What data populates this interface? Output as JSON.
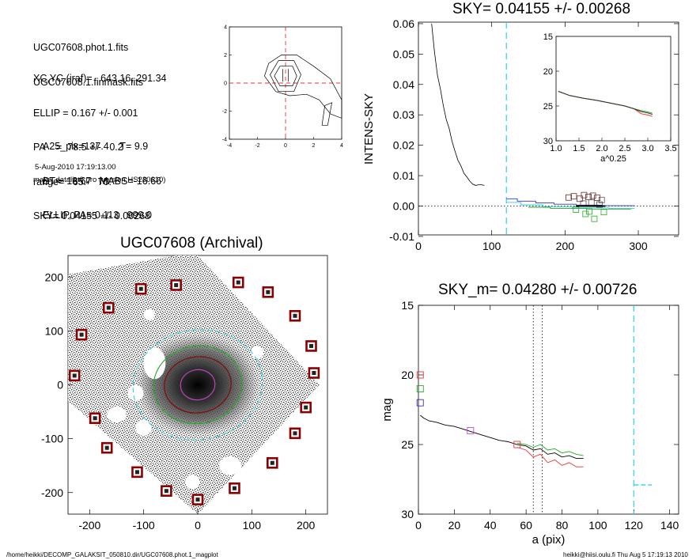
{
  "info": {
    "lines1": [
      "UGC07608.phot.1.fits",
      "UGC07608.1.finmask.fits"
    ],
    "lines2": [
      "XC,YC (iraf)=   643.16, 291.34",
      "ELLIP = 0.167 +/- 0.001",
      "PA    =  78.5 +/-   0.2",
      "range=   65.-   70.",
      "SKY= 0.04155 +/- 0.00268"
    ],
    "lines3": [
      "A25_pix=137.4    T= 9.9",
      "BT=  13.67   MABS=-16.66",
      "ELLIP, PA= 0.113   999.0"
    ],
    "date": "5-Aug-2010 17:19:13.00",
    "program": "make_datalist0.pro (version HS230610)"
  },
  "footer": {
    "left": "/home/heikki/DECOMP_GALAKSIT_050810.dir/UGC07608.phot.1_magplot",
    "right": "heikki@hiisi.oulu.fi  Thu Aug  5 17:19:13 2010"
  },
  "colors": {
    "cyan": "#2fd2e6",
    "red": "#e33",
    "green": "#2a2",
    "blue": "#33c",
    "magenta": "#c4c",
    "darkred": "#8b0000"
  },
  "chart_data": [
    {
      "type": "contour",
      "xlim": [
        -4,
        4
      ],
      "ylim": [
        -4,
        4
      ],
      "xticks": [
        -4,
        -2,
        0,
        2,
        4
      ],
      "yticks": [
        -4,
        -2,
        0,
        2,
        4
      ],
      "center": [
        0,
        0
      ]
    },
    {
      "type": "line",
      "title": "SKY= 0.04155 +/- 0.00268",
      "ylabel": "INTENS-SKY",
      "xlabel": "",
      "xlim": [
        0,
        355
      ],
      "ylim": [
        -0.0095,
        0.0605
      ],
      "xticks": [
        0,
        100,
        200,
        300
      ],
      "yticks": [
        -0.01,
        0.0,
        0.01,
        0.02,
        0.03,
        0.04,
        0.05,
        0.06
      ],
      "ytick_labels": [
        "-0.01",
        "0.00",
        "0.01",
        "0.02",
        "0.03",
        "0.04",
        "0.05",
        "0.06"
      ],
      "sky_line_x": 120,
      "profile": {
        "x": [
          18,
          22,
          26,
          30,
          34,
          38,
          42,
          46,
          50,
          54,
          58,
          62,
          66,
          70,
          74,
          78,
          82,
          86,
          90
        ],
        "y": [
          0.06,
          0.0505,
          0.043,
          0.0385,
          0.033,
          0.0285,
          0.0255,
          0.0212,
          0.018,
          0.015,
          0.0132,
          0.0108,
          0.0096,
          0.0082,
          0.0072,
          0.0068,
          0.007,
          0.007,
          0.0068
        ]
      },
      "outer_blue": {
        "x": [
          120,
          135,
          135,
          160,
          160,
          185,
          185,
          215,
          215,
          250,
          250,
          295
        ],
        "y": [
          0.0024,
          0.0024,
          0.0016,
          0.0016,
          0.001,
          0.001,
          0.0006,
          0.0006,
          0.0003,
          0.0003,
          0.0001,
          0.0001
        ]
      },
      "outer_cyan": {
        "x": [
          120,
          140,
          140,
          170,
          170,
          210,
          210,
          260,
          260,
          295
        ],
        "y": [
          0.0012,
          0.0012,
          0.0004,
          0.0004,
          -0.0002,
          -0.0002,
          -0.0006,
          -0.0006,
          -0.0008,
          -0.0008
        ]
      },
      "outer_green": {
        "x": [
          150,
          180,
          180,
          230,
          230,
          290
        ],
        "y": [
          -0.0004,
          -0.0004,
          -0.0008,
          -0.0008,
          -0.001,
          -0.001
        ]
      },
      "sky_boxes": [
        [
          205,
          0.0028
        ],
        [
          212,
          0.0032
        ],
        [
          220,
          0.0024
        ],
        [
          226,
          0.0036
        ],
        [
          232,
          0.003
        ],
        [
          238,
          0.0034
        ],
        [
          244,
          0.0027
        ],
        [
          250,
          0.002
        ],
        [
          215,
          -0.0012
        ],
        [
          225,
          0.0008
        ],
        [
          233,
          -0.0018
        ],
        [
          240,
          -0.0042
        ],
        [
          247,
          0.0005
        ],
        [
          253,
          -0.002
        ],
        [
          228,
          -0.0026
        ],
        [
          236,
          0.0012
        ]
      ],
      "inset": {
        "xlim": [
          1.0,
          3.5
        ],
        "ylim": [
          15,
          30
        ],
        "xticks": [
          1.0,
          1.5,
          2.0,
          2.5,
          3.0,
          3.5
        ],
        "xtick_labels": [
          "1.0",
          "1.5",
          "2.0",
          "2.5",
          "3.0",
          "3.5"
        ],
        "yticks": [
          15,
          20,
          25,
          30
        ],
        "xlabel": "a^0.25",
        "x": [
          1.05,
          1.3,
          1.6,
          1.9,
          2.2,
          2.5,
          2.7,
          2.85,
          3.0,
          3.1
        ],
        "y": [
          22.9,
          23.5,
          23.9,
          24.2,
          24.6,
          25.0,
          25.4,
          25.8,
          26.0,
          26.2
        ]
      }
    },
    {
      "type": "image",
      "title": "UGC07608 (Archival)",
      "xlim": [
        -240,
        240
      ],
      "ylim": [
        -240,
        240
      ],
      "xticks": [
        -200,
        -100,
        0,
        100,
        200
      ],
      "yticks": [
        -200,
        -100,
        0,
        100,
        200
      ],
      "sky_boxes": [
        [
          -105,
          178
        ],
        [
          -40,
          185
        ],
        [
          75,
          190
        ],
        [
          130,
          172
        ],
        [
          -165,
          143
        ],
        [
          180,
          128
        ],
        [
          -215,
          93
        ],
        [
          210,
          72
        ],
        [
          -228,
          17
        ],
        [
          215,
          22
        ],
        [
          -190,
          -62
        ],
        [
          200,
          -42
        ],
        [
          -168,
          -117
        ],
        [
          180,
          -90
        ],
        [
          -112,
          -162
        ],
        [
          138,
          -145
        ],
        [
          -58,
          -197
        ],
        [
          68,
          -192
        ],
        [
          0,
          -213
        ]
      ],
      "ellipses": [
        {
          "rx": 120,
          "ry": 102,
          "color": "cyan"
        },
        {
          "rx": 82,
          "ry": 72,
          "color": "green"
        },
        {
          "rx": 62,
          "ry": 52,
          "color": "darkred"
        },
        {
          "rx": 32,
          "ry": 28,
          "color": "magenta"
        }
      ]
    },
    {
      "type": "line",
      "title": "SKY_m=  0.04280 +/- 0.00726",
      "ylabel": "mag",
      "xlabel": "a (pix)",
      "xlim": [
        0,
        145
      ],
      "ylim": [
        30,
        15
      ],
      "xticks": [
        0,
        20,
        40,
        60,
        80,
        100,
        120,
        140
      ],
      "yticks": [
        15,
        20,
        25,
        30
      ],
      "vlines_dotted": [
        64,
        69
      ],
      "vline_dashed": 120,
      "sky_segment": {
        "x": [
          120,
          130
        ],
        "y": [
          27.9,
          27.9
        ]
      },
      "series": [
        {
          "color": "black",
          "x": [
            1,
            3,
            6,
            10,
            15,
            20,
            25,
            30,
            35,
            40,
            45,
            50,
            55,
            60,
            64,
            68,
            72,
            76,
            80,
            84,
            88,
            92
          ],
          "y": [
            22.9,
            23.1,
            23.3,
            23.4,
            23.6,
            23.7,
            23.9,
            24.1,
            24.3,
            24.5,
            24.7,
            24.8,
            25.0,
            25.1,
            25.4,
            25.3,
            25.7,
            25.6,
            25.9,
            25.8,
            26.0,
            26.0
          ]
        },
        {
          "color": "red",
          "x": [
            55,
            60,
            64,
            68,
            72,
            76,
            80,
            84,
            88,
            92
          ],
          "y": [
            25.2,
            25.4,
            25.9,
            25.7,
            26.3,
            26.1,
            26.5,
            26.3,
            26.6,
            26.6
          ]
        },
        {
          "color": "green",
          "x": [
            55,
            60,
            64,
            68,
            72,
            76,
            80,
            84,
            88,
            92
          ],
          "y": [
            24.9,
            25.0,
            25.2,
            25.0,
            25.4,
            25.3,
            25.6,
            25.5,
            25.7,
            25.8
          ]
        }
      ],
      "markers": [
        {
          "x": 1,
          "y": 20.0,
          "color": "red"
        },
        {
          "x": 1,
          "y": 21.0,
          "color": "green"
        },
        {
          "x": 1,
          "y": 22.0,
          "color": "blue"
        },
        {
          "x": 29,
          "y": 24.0,
          "color": "magenta"
        },
        {
          "x": 55,
          "y": 25.0,
          "color": "red"
        }
      ]
    }
  ]
}
